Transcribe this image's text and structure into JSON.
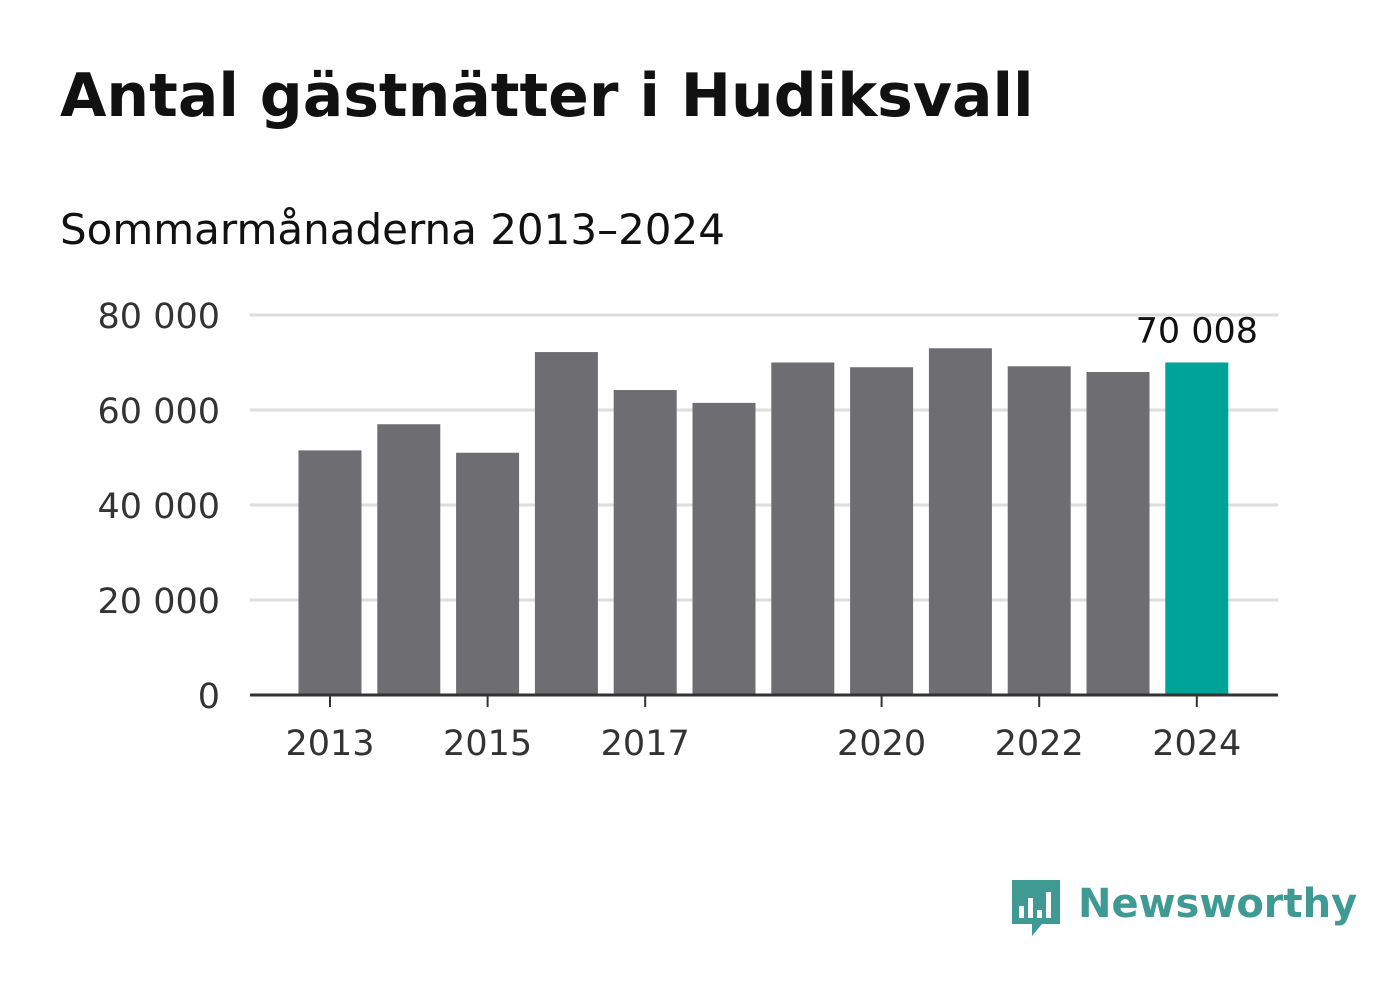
{
  "header": {
    "title": "Antal gästnätter i Hudiksvall",
    "subtitle": "Sommarmånaderna 2013–2024"
  },
  "branding": {
    "name": "Newsworthy",
    "icon": "newsworthy-logo-icon",
    "color": "#3e9a93"
  },
  "chart_data": {
    "type": "bar",
    "categories": [
      "2013",
      "2014",
      "2015",
      "2016",
      "2017",
      "2018",
      "2019",
      "2020",
      "2021",
      "2022",
      "2023",
      "2024"
    ],
    "x_tick_labels": [
      "2013",
      "2015",
      "2017",
      "2020",
      "2022",
      "2024"
    ],
    "values": [
      51500,
      57000,
      51000,
      72200,
      64200,
      61500,
      70000,
      69000,
      73000,
      69200,
      68000,
      70008
    ],
    "y_ticks": [
      0,
      20000,
      40000,
      60000,
      80000
    ],
    "y_tick_labels": [
      "0",
      "20 000",
      "40 000",
      "60 000",
      "80 000"
    ],
    "ylim": [
      0,
      80000
    ],
    "grid": true,
    "highlight_index": 11,
    "highlight_label": "70 008",
    "bar_color": "#6e6d72",
    "highlight_color": "#00a398",
    "xlabel": "",
    "ylabel": ""
  }
}
